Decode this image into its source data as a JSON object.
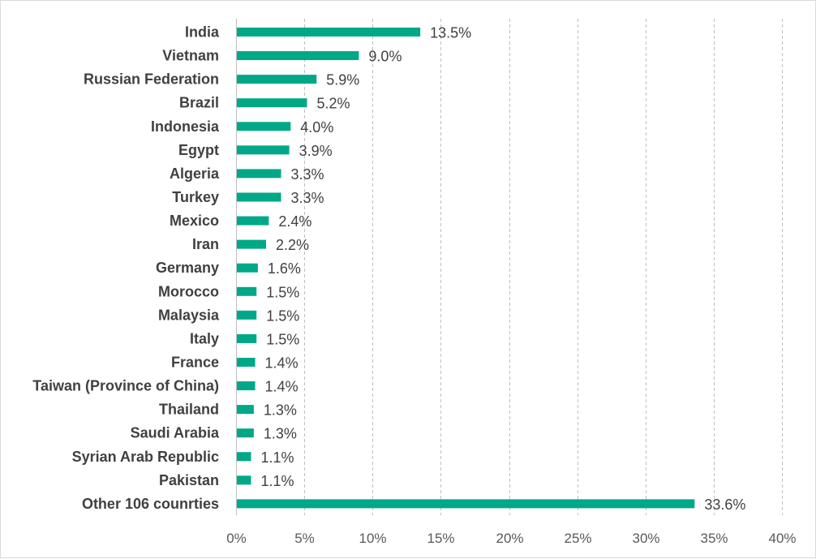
{
  "chart_data": {
    "type": "bar",
    "orientation": "horizontal",
    "categories": [
      "India",
      "Vietnam",
      "Russian Federation",
      "Brazil",
      "Indonesia",
      "Egypt",
      "Algeria",
      "Turkey",
      "Mexico",
      "Iran",
      "Germany",
      "Morocco",
      "Malaysia",
      "Italy",
      "France",
      "Taiwan (Province of China)",
      "Thailand",
      "Saudi Arabia",
      "Syrian Arab Republic",
      "Pakistan",
      "Other 106 counrties"
    ],
    "values": [
      13.5,
      9.0,
      5.9,
      5.2,
      4.0,
      3.9,
      3.3,
      3.3,
      2.4,
      2.2,
      1.6,
      1.5,
      1.5,
      1.5,
      1.4,
      1.4,
      1.3,
      1.3,
      1.1,
      1.1,
      33.6
    ],
    "data_labels": [
      "13.5%",
      "9.0%",
      "5.9%",
      "5.2%",
      "4.0%",
      "3.9%",
      "3.3%",
      "3.3%",
      "2.4%",
      "2.2%",
      "1.6%",
      "1.5%",
      "1.5%",
      "1.5%",
      "1.4%",
      "1.4%",
      "1.3%",
      "1.3%",
      "1.1%",
      "1.1%",
      "33.6%"
    ],
    "xlim": [
      0,
      40
    ],
    "x_ticks": [
      0,
      5,
      10,
      15,
      20,
      25,
      30,
      35,
      40
    ],
    "x_tick_labels": [
      "0%",
      "5%",
      "10%",
      "15%",
      "20%",
      "25%",
      "30%",
      "35%",
      "40%"
    ],
    "title": "",
    "xlabel": "",
    "ylabel": "",
    "grid": "vertical dashed",
    "legend": "none",
    "bar_color": "#00A887"
  }
}
